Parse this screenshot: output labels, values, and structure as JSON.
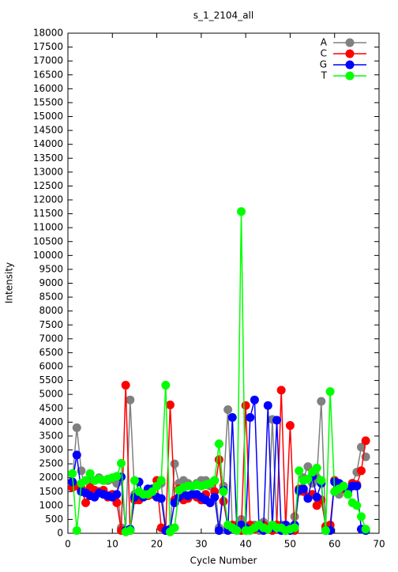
{
  "chart_data": {
    "type": "line",
    "title": "s_1_2104_all",
    "x_label": "Cycle Number",
    "y_label": "Intensity",
    "x": [
      1,
      2,
      3,
      4,
      5,
      6,
      7,
      8,
      9,
      10,
      11,
      12,
      13,
      14,
      15,
      16,
      17,
      18,
      19,
      20,
      21,
      22,
      23,
      24,
      25,
      26,
      27,
      28,
      29,
      30,
      31,
      32,
      33,
      34,
      35,
      36,
      37,
      38,
      39,
      40,
      41,
      42,
      43,
      44,
      45,
      46,
      47,
      48,
      49,
      50,
      51,
      52,
      53,
      54,
      55,
      56,
      57,
      58,
      59,
      60,
      61,
      62,
      63,
      64,
      65,
      66,
      67
    ],
    "series": [
      {
        "name": "A",
        "color": "#808080",
        "values": [
          1850,
          3800,
          2250,
          1500,
          1900,
          1900,
          2000,
          1900,
          1900,
          1950,
          1800,
          200,
          100,
          4800,
          1400,
          1300,
          1400,
          1500,
          1600,
          1700,
          1800,
          100,
          100,
          2500,
          1800,
          1900,
          1800,
          1700,
          1800,
          1900,
          1900,
          1700,
          1900,
          200,
          1700,
          4450,
          200,
          300,
          500,
          100,
          200,
          300,
          100,
          400,
          200,
          4100,
          200,
          300,
          100,
          200,
          600,
          1500,
          2000,
          2400,
          1800,
          2000,
          4750,
          200,
          200,
          1900,
          1400,
          1600,
          1500,
          1800,
          2200,
          3100,
          2750
        ]
      },
      {
        "name": "C",
        "color": "#ff0000",
        "values": [
          1650,
          1700,
          1600,
          1100,
          1650,
          1550,
          1500,
          1550,
          1300,
          1400,
          1100,
          100,
          5330,
          100,
          1200,
          1200,
          1400,
          1350,
          1400,
          1900,
          200,
          100,
          4620,
          1200,
          1600,
          1200,
          1250,
          1400,
          1300,
          1200,
          1400,
          1100,
          1500,
          2650,
          1150,
          200,
          300,
          200,
          100,
          4600,
          300,
          150,
          200,
          300,
          200,
          100,
          300,
          5150,
          200,
          3880,
          100,
          1600,
          1500,
          1300,
          1400,
          1000,
          1200,
          250,
          300,
          1900,
          1700,
          1600,
          1500,
          1800,
          1750,
          2250,
          3330
        ]
      },
      {
        "name": "G",
        "color": "#0000ff",
        "values": [
          1850,
          2820,
          1500,
          1450,
          1350,
          1300,
          1450,
          1400,
          1350,
          1300,
          1400,
          2030,
          100,
          150,
          1300,
          1850,
          1300,
          1600,
          1600,
          1300,
          1250,
          100,
          150,
          1100,
          1300,
          1400,
          1350,
          1400,
          1400,
          1300,
          1200,
          1100,
          1300,
          100,
          1550,
          100,
          4170,
          200,
          300,
          200,
          4170,
          4800,
          200,
          100,
          4600,
          200,
          4070,
          100,
          300,
          100,
          300,
          1550,
          1600,
          1250,
          2050,
          1300,
          1800,
          100,
          100,
          1850,
          1800,
          1700,
          1500,
          1700,
          1700,
          150,
          100
        ]
      },
      {
        "name": "T",
        "color": "#00ff00",
        "values": [
          2150,
          100,
          1800,
          1900,
          2150,
          1900,
          1950,
          1900,
          1950,
          2000,
          2050,
          2520,
          50,
          100,
          1900,
          1500,
          1400,
          1400,
          1500,
          1700,
          1900,
          5330,
          50,
          200,
          1550,
          1650,
          1700,
          1700,
          1750,
          1700,
          1750,
          1800,
          1900,
          3220,
          1500,
          300,
          200,
          100,
          11580,
          100,
          100,
          200,
          300,
          200,
          150,
          300,
          200,
          200,
          100,
          150,
          200,
          2250,
          1900,
          1950,
          2200,
          2350,
          1900,
          100,
          5100,
          1500,
          1600,
          1700,
          1400,
          1100,
          1000,
          600,
          150
        ]
      }
    ],
    "xlim": [
      0,
      70
    ],
    "xticks": [
      0,
      10,
      20,
      30,
      40,
      50,
      60,
      70
    ],
    "ylim": [
      0,
      18000
    ],
    "yticks": [
      0,
      500,
      1000,
      1500,
      2000,
      2500,
      3000,
      3500,
      4000,
      4500,
      5000,
      5500,
      6000,
      6500,
      7000,
      7500,
      8000,
      8500,
      9000,
      9500,
      10000,
      10500,
      11000,
      11500,
      12000,
      12500,
      13000,
      13500,
      14000,
      14500,
      15000,
      15500,
      16000,
      16500,
      17000,
      17500,
      18000
    ],
    "grid": false,
    "legend": "top-right"
  }
}
